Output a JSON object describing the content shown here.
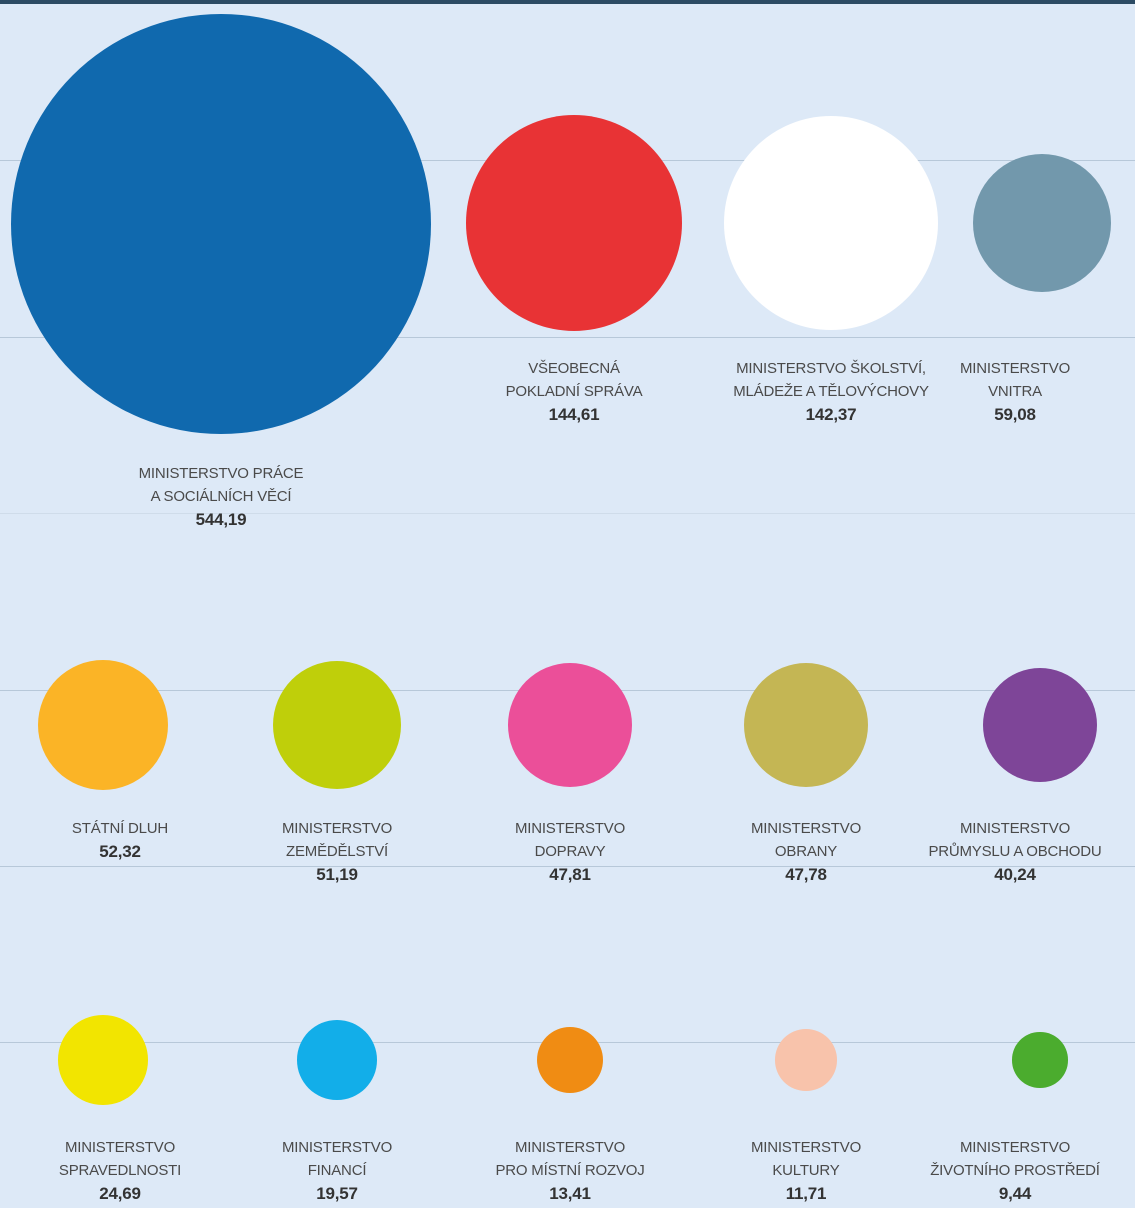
{
  "chart_data": {
    "type": "bubble",
    "title": "",
    "unit": "",
    "grid": true,
    "items": [
      {
        "line1": "MINISTERSTVO PRÁCE",
        "line2": "A SOCIÁLNÍCH VĚCÍ",
        "value": 544.19,
        "display": "544,19",
        "color": "#1069ae"
      },
      {
        "line1": "VŠEOBECNÁ",
        "line2": "POKLADNÍ SPRÁVA",
        "value": 144.61,
        "display": "144,61",
        "color": "#e83335"
      },
      {
        "line1": "MINISTERSTVO ŠKOLSTVÍ,",
        "line2": "MLÁDEŽE A TĚLOVÝCHOVY",
        "value": 142.37,
        "display": "142,37",
        "color": "#ffffff"
      },
      {
        "line1": "MINISTERSTVO",
        "line2": "VNITRA",
        "value": 59.08,
        "display": "59,08",
        "color": "#7298ac"
      },
      {
        "line1": "STÁTNÍ DLUH",
        "line2": "",
        "value": 52.32,
        "display": "52,32",
        "color": "#fbb426"
      },
      {
        "line1": "MINISTERSTVO",
        "line2": "ZEMĚDĚLSTVÍ",
        "value": 51.19,
        "display": "51,19",
        "color": "#bfcf0a"
      },
      {
        "line1": "MINISTERSTVO",
        "line2": "DOPRAVY",
        "value": 47.81,
        "display": "47,81",
        "color": "#eb4f99"
      },
      {
        "line1": "MINISTERSTVO",
        "line2": "OBRANY",
        "value": 47.78,
        "display": "47,78",
        "color": "#c4b654"
      },
      {
        "line1": "MINISTERSTVO",
        "line2": "PRŮMYSLU A OBCHODU",
        "value": 40.24,
        "display": "40,24",
        "color": "#7e4598"
      },
      {
        "line1": "MINISTERSTVO",
        "line2": "SPRAVEDLNOSTI",
        "value": 24.69,
        "display": "24,69",
        "color": "#f2e500"
      },
      {
        "line1": "MINISTERSTVO",
        "line2": "FINANCÍ",
        "value": 19.57,
        "display": "19,57",
        "color": "#12aee9"
      },
      {
        "line1": "MINISTERSTVO",
        "line2": "PRO MÍSTNÍ ROZVOJ",
        "value": 13.41,
        "display": "13,41",
        "color": "#f08c13"
      },
      {
        "line1": "MINISTERSTVO",
        "line2": "KULTURY",
        "value": 11.71,
        "display": "11,71",
        "color": "#f8c3ab"
      },
      {
        "line1": "MINISTERSTVO",
        "line2": "ŽIVOTNÍHO PROSTŘEDÍ",
        "value": 9.44,
        "display": "9,44",
        "color": "#4bac2e"
      }
    ]
  }
}
